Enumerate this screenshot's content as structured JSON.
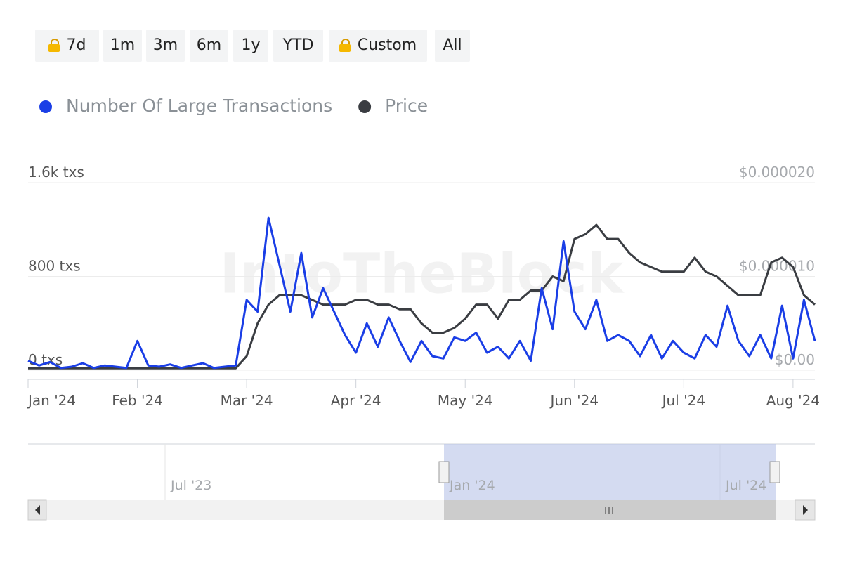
{
  "range_buttons": [
    "7d",
    "1m",
    "3m",
    "6m",
    "1y",
    "YTD",
    "Custom",
    "All"
  ],
  "watermark": "IntoTheBlock",
  "navigator": {
    "labels": [
      "Jul '23",
      "Jan '24",
      "Jul '24"
    ]
  },
  "chart_data": {
    "type": "line",
    "categories": [
      "Jan '24",
      null,
      null,
      null,
      null,
      null,
      null,
      null,
      null,
      null,
      "Feb '24",
      null,
      null,
      null,
      null,
      null,
      null,
      null,
      null,
      null,
      "Mar '24",
      null,
      null,
      null,
      null,
      null,
      null,
      null,
      null,
      null,
      "Apr '24",
      null,
      null,
      null,
      null,
      null,
      null,
      null,
      null,
      null,
      "May '24",
      null,
      null,
      null,
      null,
      null,
      null,
      null,
      null,
      null,
      "Jun '24",
      null,
      null,
      null,
      null,
      null,
      null,
      null,
      null,
      null,
      "Jul '24",
      null,
      null,
      null,
      null,
      null,
      null,
      null,
      null,
      null,
      "Aug '24",
      null,
      null
    ],
    "series": [
      {
        "name": "Number Of Large Transactions",
        "color": "#1a3ee6",
        "values": [
          80,
          40,
          70,
          20,
          30,
          60,
          20,
          40,
          30,
          20,
          250,
          40,
          30,
          50,
          20,
          40,
          60,
          20,
          30,
          40,
          600,
          500,
          1300,
          900,
          500,
          1000,
          450,
          700,
          500,
          300,
          150,
          400,
          200,
          450,
          250,
          70,
          250,
          120,
          100,
          280,
          250,
          320,
          150,
          200,
          100,
          250,
          80,
          700,
          350,
          1100,
          500,
          350,
          600,
          250,
          300,
          250,
          120,
          300,
          100,
          250,
          150,
          100,
          300,
          200,
          550,
          250,
          120,
          300,
          100,
          550,
          100,
          600,
          250
        ]
      },
      {
        "name": "Price",
        "color": "#3a3d42",
        "axis": "y2",
        "values": [
          2e-07,
          2e-07,
          2e-07,
          2e-07,
          2e-07,
          2e-07,
          2e-07,
          2e-07,
          2e-07,
          2e-07,
          2e-07,
          2e-07,
          2e-07,
          2e-07,
          2e-07,
          2e-07,
          2e-07,
          2e-07,
          2e-07,
          2e-07,
          1.5e-06,
          5e-06,
          7e-06,
          8e-06,
          8e-06,
          8e-06,
          7.5e-06,
          7e-06,
          7e-06,
          7e-06,
          7.5e-06,
          7.5e-06,
          7e-06,
          7e-06,
          6.5e-06,
          6.5e-06,
          5e-06,
          4e-06,
          4e-06,
          4.5e-06,
          5.5e-06,
          7e-06,
          7e-06,
          5.5e-06,
          7.5e-06,
          7.5e-06,
          8.5e-06,
          8.5e-06,
          1e-05,
          9.5e-06,
          1.4e-05,
          1.45e-05,
          1.55e-05,
          1.4e-05,
          1.4e-05,
          1.25e-05,
          1.15e-05,
          1.1e-05,
          1.05e-05,
          1.05e-05,
          1.05e-05,
          1.2e-05,
          1.05e-05,
          1e-05,
          9e-06,
          8e-06,
          8e-06,
          8e-06,
          1.15e-05,
          1.2e-05,
          1.1e-05,
          8e-06,
          7e-06
        ]
      }
    ],
    "ylim": [
      0,
      1600
    ],
    "yticks": [
      {
        "value": 0,
        "label": "0 txs"
      },
      {
        "value": 800,
        "label": "800 txs"
      },
      {
        "value": 1600,
        "label": "1.6k txs"
      }
    ],
    "y2lim": [
      0,
      2e-05
    ],
    "y2ticks": [
      {
        "value": 0,
        "label": "$0.00"
      },
      {
        "value": 1e-05,
        "label": "$0.000010"
      },
      {
        "value": 2e-05,
        "label": "$0.000020"
      }
    ],
    "grid": true,
    "legend": "top-left"
  }
}
